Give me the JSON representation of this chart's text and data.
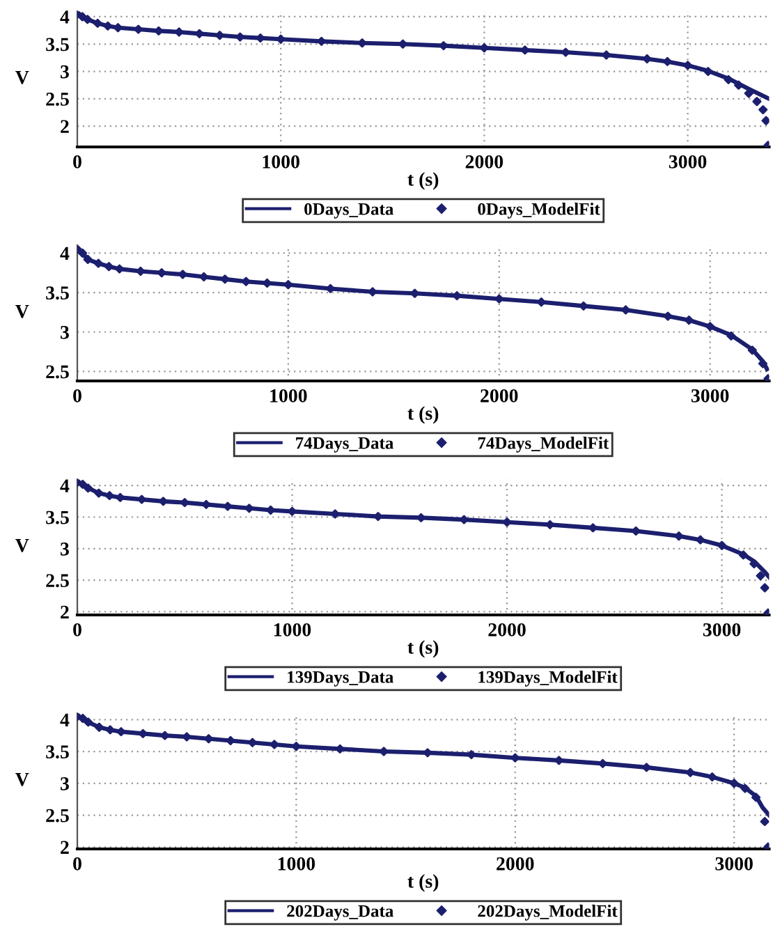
{
  "chart_data": [
    {
      "type": "line",
      "xlabel": "t (s)",
      "ylabel": "V",
      "xlim": [
        0,
        3400
      ],
      "ylim": [
        1.62,
        4.1
      ],
      "xticks": [
        0,
        1000,
        2000,
        3000
      ],
      "yticks": [
        2,
        2.5,
        3,
        3.5,
        4
      ],
      "grid": true,
      "legend": "bottom",
      "series": [
        {
          "name": "0Days_Data",
          "color": "#1c1f6e",
          "marker": "none",
          "x": [
            0,
            25,
            50,
            100,
            150,
            200,
            300,
            400,
            500,
            600,
            700,
            800,
            900,
            1000,
            1200,
            1400,
            1600,
            1800,
            2000,
            2200,
            2400,
            2600,
            2800,
            2900,
            3000,
            3100,
            3200,
            3300,
            3400
          ],
          "values": [
            4.05,
            4.0,
            3.95,
            3.88,
            3.83,
            3.8,
            3.77,
            3.74,
            3.72,
            3.69,
            3.66,
            3.63,
            3.61,
            3.59,
            3.55,
            3.52,
            3.5,
            3.47,
            3.43,
            3.39,
            3.35,
            3.3,
            3.23,
            3.18,
            3.11,
            3.01,
            2.87,
            2.68,
            2.5
          ]
        },
        {
          "name": "0Days_ModelFit",
          "type": "scatter",
          "color": "#1c1f6e",
          "marker": "diamond",
          "x": [
            0,
            25,
            50,
            100,
            150,
            200,
            300,
            400,
            500,
            600,
            700,
            800,
            900,
            1000,
            1200,
            1400,
            1600,
            1800,
            2000,
            2200,
            2400,
            2600,
            2800,
            2900,
            3000,
            3100,
            3200,
            3250,
            3300,
            3340,
            3370,
            3385,
            3395
          ],
          "values": [
            4.05,
            4.0,
            3.95,
            3.88,
            3.83,
            3.8,
            3.77,
            3.74,
            3.72,
            3.69,
            3.66,
            3.63,
            3.61,
            3.59,
            3.55,
            3.52,
            3.5,
            3.47,
            3.43,
            3.39,
            3.35,
            3.3,
            3.23,
            3.18,
            3.11,
            3.0,
            2.85,
            2.75,
            2.6,
            2.45,
            2.3,
            2.1,
            1.65
          ]
        }
      ]
    },
    {
      "type": "line",
      "xlabel": "t (s)",
      "ylabel": "V",
      "xlim": [
        0,
        3280
      ],
      "ylim": [
        2.38,
        4.1
      ],
      "xticks": [
        0,
        1000,
        2000,
        3000
      ],
      "yticks": [
        2.5,
        3,
        3.5,
        4
      ],
      "grid": true,
      "legend": "bottom",
      "series": [
        {
          "name": "74Days_Data",
          "color": "#1c1f6e",
          "marker": "none",
          "x": [
            0,
            25,
            50,
            100,
            150,
            200,
            300,
            400,
            500,
            600,
            700,
            800,
            900,
            1000,
            1200,
            1400,
            1600,
            1800,
            2000,
            2200,
            2400,
            2600,
            2800,
            2900,
            3000,
            3100,
            3200,
            3250,
            3270
          ],
          "values": [
            4.05,
            4.0,
            3.92,
            3.87,
            3.83,
            3.8,
            3.77,
            3.75,
            3.73,
            3.7,
            3.67,
            3.64,
            3.62,
            3.6,
            3.55,
            3.51,
            3.49,
            3.46,
            3.42,
            3.38,
            3.33,
            3.28,
            3.2,
            3.15,
            3.07,
            2.96,
            2.78,
            2.63,
            2.53
          ]
        },
        {
          "name": "74Days_ModelFit",
          "type": "scatter",
          "color": "#1c1f6e",
          "marker": "diamond",
          "x": [
            0,
            25,
            50,
            100,
            150,
            200,
            300,
            400,
            500,
            600,
            700,
            800,
            900,
            1000,
            1200,
            1400,
            1600,
            1800,
            2000,
            2200,
            2400,
            2600,
            2800,
            2900,
            3000,
            3100,
            3200,
            3250,
            3275
          ],
          "values": [
            4.05,
            4.0,
            3.92,
            3.87,
            3.83,
            3.8,
            3.77,
            3.75,
            3.73,
            3.7,
            3.67,
            3.64,
            3.62,
            3.6,
            3.55,
            3.51,
            3.49,
            3.46,
            3.42,
            3.38,
            3.33,
            3.28,
            3.2,
            3.15,
            3.07,
            2.95,
            2.77,
            2.6,
            2.41
          ]
        }
      ]
    },
    {
      "type": "line",
      "xlabel": "t (s)",
      "ylabel": "V",
      "xlim": [
        0,
        3220
      ],
      "ylim": [
        1.95,
        4.1
      ],
      "xticks": [
        0,
        1000,
        2000,
        3000
      ],
      "yticks": [
        2,
        2.5,
        3,
        3.5,
        4
      ],
      "grid": true,
      "legend": "bottom",
      "series": [
        {
          "name": "139Days_Data",
          "color": "#1c1f6e",
          "marker": "none",
          "x": [
            0,
            25,
            50,
            100,
            150,
            200,
            300,
            400,
            500,
            600,
            700,
            800,
            900,
            1000,
            1200,
            1400,
            1600,
            1800,
            2000,
            2200,
            2400,
            2600,
            2800,
            2900,
            3000,
            3100,
            3150,
            3200,
            3220
          ],
          "values": [
            4.05,
            4.02,
            3.96,
            3.88,
            3.84,
            3.81,
            3.78,
            3.75,
            3.73,
            3.7,
            3.67,
            3.64,
            3.61,
            3.59,
            3.55,
            3.51,
            3.49,
            3.46,
            3.42,
            3.38,
            3.33,
            3.28,
            3.2,
            3.14,
            3.05,
            2.91,
            2.8,
            2.63,
            2.55
          ]
        },
        {
          "name": "139Days_ModelFit",
          "type": "scatter",
          "color": "#1c1f6e",
          "marker": "diamond",
          "x": [
            0,
            25,
            50,
            100,
            150,
            200,
            300,
            400,
            500,
            600,
            700,
            800,
            900,
            1000,
            1200,
            1400,
            1600,
            1800,
            2000,
            2200,
            2400,
            2600,
            2800,
            2900,
            3000,
            3100,
            3150,
            3180,
            3200,
            3215
          ],
          "values": [
            4.05,
            4.02,
            3.96,
            3.88,
            3.84,
            3.81,
            3.78,
            3.75,
            3.73,
            3.7,
            3.67,
            3.64,
            3.61,
            3.59,
            3.55,
            3.51,
            3.49,
            3.46,
            3.42,
            3.38,
            3.33,
            3.28,
            3.2,
            3.14,
            3.05,
            2.9,
            2.76,
            2.57,
            2.38,
            1.98
          ]
        }
      ]
    },
    {
      "type": "line",
      "xlabel": "t (s)",
      "ylabel": "V",
      "xlim": [
        0,
        3160
      ],
      "ylim": [
        1.97,
        4.1
      ],
      "xticks": [
        0,
        1000,
        2000,
        3000
      ],
      "yticks": [
        2,
        2.5,
        3,
        3.5,
        4
      ],
      "grid": true,
      "legend": "bottom",
      "series": [
        {
          "name": "202Days_Data",
          "color": "#1c1f6e",
          "marker": "none",
          "x": [
            0,
            25,
            50,
            100,
            150,
            200,
            300,
            400,
            500,
            600,
            700,
            800,
            900,
            1000,
            1200,
            1400,
            1600,
            1800,
            2000,
            2200,
            2400,
            2600,
            2800,
            2900,
            3000,
            3050,
            3100,
            3130,
            3160
          ],
          "values": [
            4.05,
            4.02,
            3.96,
            3.88,
            3.84,
            3.81,
            3.78,
            3.75,
            3.73,
            3.7,
            3.67,
            3.64,
            3.61,
            3.58,
            3.54,
            3.5,
            3.48,
            3.45,
            3.4,
            3.36,
            3.31,
            3.25,
            3.17,
            3.1,
            3.0,
            2.93,
            2.8,
            2.62,
            2.5
          ]
        },
        {
          "name": "202Days_ModelFit",
          "type": "scatter",
          "color": "#1c1f6e",
          "marker": "diamond",
          "x": [
            0,
            25,
            50,
            100,
            150,
            200,
            300,
            400,
            500,
            600,
            700,
            800,
            900,
            1000,
            1200,
            1400,
            1600,
            1800,
            2000,
            2200,
            2400,
            2600,
            2800,
            2900,
            3000,
            3050,
            3100,
            3140,
            3155
          ],
          "values": [
            4.05,
            4.02,
            3.96,
            3.88,
            3.84,
            3.81,
            3.78,
            3.75,
            3.73,
            3.7,
            3.67,
            3.64,
            3.61,
            3.58,
            3.54,
            3.5,
            3.48,
            3.45,
            3.4,
            3.36,
            3.31,
            3.25,
            3.17,
            3.1,
            3.0,
            2.92,
            2.78,
            2.4,
            2.0
          ]
        }
      ]
    }
  ]
}
